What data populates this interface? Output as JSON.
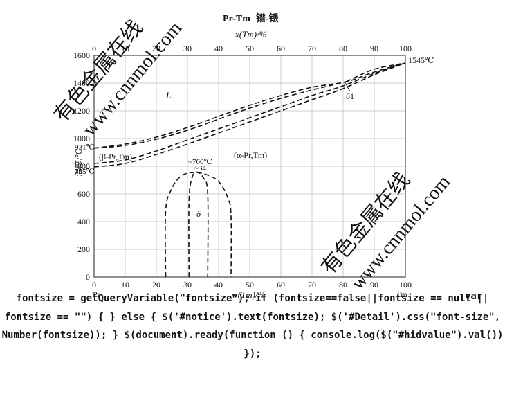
{
  "title": {
    "system": "Pr-Tm",
    "chinese": "镨-铥"
  },
  "axes": {
    "top_label": "x(Tm)/%",
    "bottom_label": "w(Tm)/%",
    "y_label": "温度/℃",
    "left_element": "Pr",
    "right_element": "Tm",
    "x_ticks": [
      "0",
      "10",
      "20",
      "30",
      "40",
      "50",
      "60",
      "70",
      "80",
      "90",
      "100"
    ],
    "y_ticks": [
      "0",
      "200",
      "400",
      "600",
      "800",
      "1000",
      "1200",
      "1400",
      "1600"
    ],
    "x_range": [
      0,
      100
    ],
    "y_range": [
      0,
      1600
    ],
    "grid": true
  },
  "annotations": {
    "tm_melt": "1545℃",
    "pr_melt": "931℃",
    "pr_transform": "795℃",
    "liquid": "L",
    "beta_phase": "(β-Pr,Tm)",
    "alpha_phase": "(α-Pr,Tm)",
    "delta_peak_temp": "~760℃",
    "delta_peak_comp": "~34",
    "delta_phase": "δ",
    "extremum_comp": "81"
  },
  "watermarks": {
    "text_a": "有色金属在线",
    "text_b": "www.cnnmol.com"
  },
  "page_text": {
    "var_keyword": "var",
    "script": "fontsize = getQueryVariable(\"fontsize\"); if (fontsize==false||fontsize == null || fontsize == \"\") { } else { $('#notice').text(fontsize); $('#Detail').css(\"font-size\", Number(fontsize)); } $(document).ready(function () { console.log($(\"#hidvalue\").val()) });"
  },
  "chart_data": {
    "type": "phase-diagram",
    "title": "Pr-Tm 镨-铥",
    "xlabel": "w(Tm)/%",
    "xlabel_top": "x(Tm)/%",
    "ylabel": "温度/℃",
    "xlim": [
      0,
      100
    ],
    "ylim": [
      0,
      1600
    ],
    "curves": [
      {
        "name": "liquidus",
        "points": [
          [
            0,
            931
          ],
          [
            10,
            960
          ],
          [
            20,
            1010
          ],
          [
            30,
            1080
          ],
          [
            40,
            1160
          ],
          [
            50,
            1240
          ],
          [
            60,
            1310
          ],
          [
            70,
            1370
          ],
          [
            81,
            1410
          ],
          [
            90,
            1480
          ],
          [
            100,
            1545
          ]
        ]
      },
      {
        "name": "solidus",
        "points": [
          [
            0,
            931
          ],
          [
            10,
            950
          ],
          [
            20,
            995
          ],
          [
            30,
            1060
          ],
          [
            40,
            1140
          ],
          [
            50,
            1220
          ],
          [
            60,
            1290
          ],
          [
            70,
            1350
          ],
          [
            81,
            1410
          ]
        ]
      },
      {
        "name": "solidus-tm-side",
        "points": [
          [
            81,
            1410
          ],
          [
            90,
            1500
          ],
          [
            100,
            1545
          ]
        ]
      },
      {
        "name": "beta-alpha-upper",
        "points": [
          [
            0,
            820
          ],
          [
            10,
            845
          ],
          [
            20,
            910
          ],
          [
            30,
            990
          ],
          [
            40,
            1070
          ],
          [
            50,
            1150
          ],
          [
            60,
            1230
          ],
          [
            70,
            1310
          ],
          [
            80,
            1380
          ],
          [
            90,
            1470
          ],
          [
            100,
            1545
          ]
        ]
      },
      {
        "name": "beta-alpha-lower",
        "points": [
          [
            0,
            795
          ],
          [
            10,
            820
          ],
          [
            20,
            885
          ],
          [
            30,
            960
          ],
          [
            40,
            1040
          ],
          [
            50,
            1120
          ],
          [
            60,
            1200
          ],
          [
            70,
            1280
          ],
          [
            80,
            1360
          ],
          [
            90,
            1460
          ],
          [
            100,
            1545
          ]
        ]
      },
      {
        "name": "delta-outer",
        "points": [
          [
            23,
            0
          ],
          [
            23,
            480
          ],
          [
            25,
            640
          ],
          [
            28,
            730
          ],
          [
            32,
            755
          ],
          [
            36,
            740
          ],
          [
            40,
            690
          ],
          [
            43,
            570
          ],
          [
            44,
            440
          ],
          [
            44,
            0
          ]
        ]
      },
      {
        "name": "delta-inner",
        "points": [
          [
            30.5,
            0
          ],
          [
            30.5,
            550
          ],
          [
            31.5,
            720
          ],
          [
            33,
            758
          ],
          [
            35,
            720
          ],
          [
            36.5,
            600
          ],
          [
            36.5,
            0
          ]
        ]
      }
    ]
  }
}
